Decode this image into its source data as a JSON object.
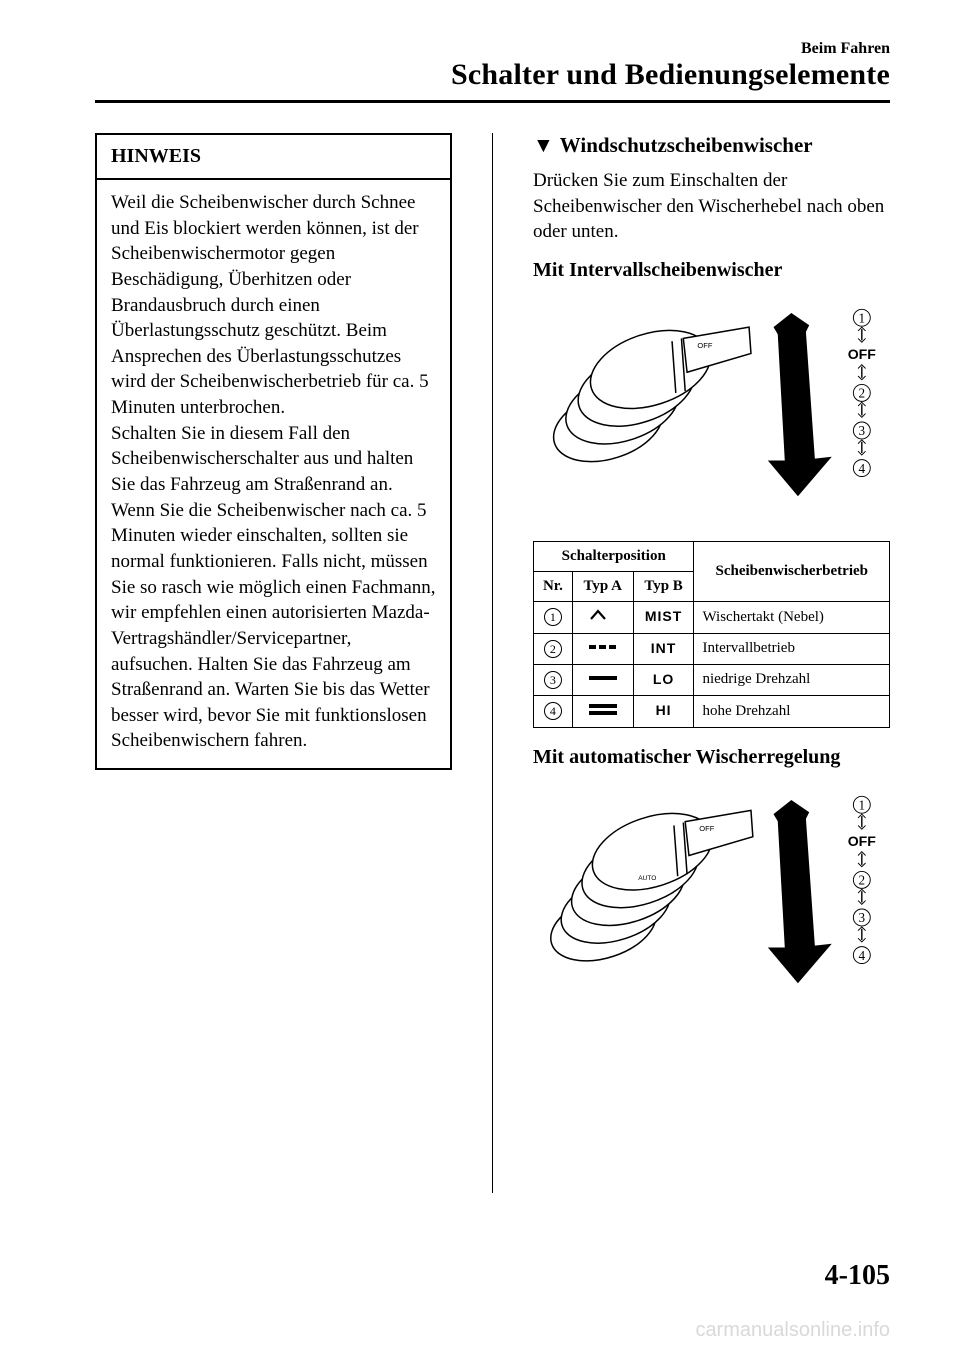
{
  "header": {
    "small": "Beim Fahren",
    "large": "Schalter und Bedienungselemente"
  },
  "hinweis": {
    "title": "HINWEIS",
    "body": "Weil die Scheibenwischer durch Schnee und Eis blockiert werden können, ist der Scheibenwischermotor gegen Beschädigung, Überhitzen oder Brandausbruch durch einen Überlastungsschutz geschützt. Beim Ansprechen des Überlastungsschutzes wird der Scheibenwischerbetrieb für ca. 5 Minuten unterbrochen.\nSchalten Sie in diesem Fall den Scheibenwischerschalter aus und halten Sie das Fahrzeug am Straßenrand an. Wenn Sie die Scheibenwischer nach ca. 5 Minuten wieder einschalten, sollten sie normal funktionieren. Falls nicht, müssen Sie so rasch wie möglich einen Fachmann, wir empfehlen einen autorisierten Mazda-Vertragshändler/Servicepartner, aufsuchen. Halten Sie das Fahrzeug am Straßenrand an. Warten Sie bis das Wetter besser wird, bevor Sie mit funktionslosen Scheibenwischern fahren."
  },
  "right": {
    "section_title": "Windschutzscheibenwischer",
    "intro": "Drücken Sie zum Einschalten der Scheibenwischer den Wischerhebel nach oben oder unten.",
    "sub1": "Mit Intervallscheibenwischer",
    "sub2": "Mit automatischer Wischerregelung",
    "off_label": "OFF",
    "diagram_positions": [
      "1",
      "2",
      "3",
      "4"
    ]
  },
  "table": {
    "header_position": "Schalterposition",
    "header_operation": "Scheibenwischerbetrieb",
    "header_nr": "Nr.",
    "header_typa": "Typ A",
    "header_typb": "Typ B",
    "rows": [
      {
        "nr": "1",
        "typb": "MIST",
        "desc": "Wischertakt (Nebel)",
        "icon_type": "mist"
      },
      {
        "nr": "2",
        "typb": "INT",
        "desc": "Intervallbetrieb",
        "icon_type": "int"
      },
      {
        "nr": "3",
        "typb": "LO",
        "desc": "niedrige Drehzahl",
        "icon_type": "lo"
      },
      {
        "nr": "4",
        "typb": "HI",
        "desc": "hohe Drehzahl",
        "icon_type": "hi"
      }
    ]
  },
  "page_number": "4-105",
  "watermark": "carmanualsonline.info"
}
